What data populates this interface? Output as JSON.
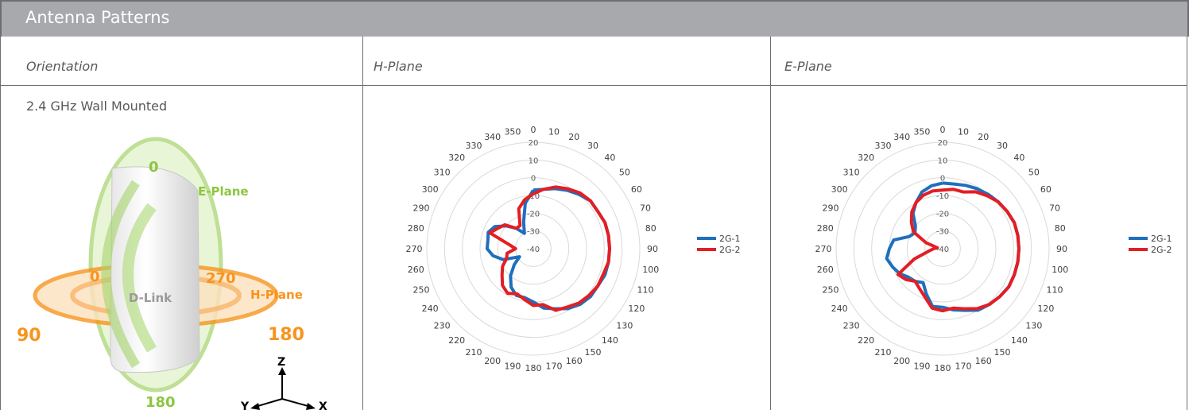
{
  "title": "Antenna Patterns",
  "headers": {
    "orientation": "Orientation",
    "h_plane": "H-Plane",
    "e_plane": "E-Plane"
  },
  "orientation": {
    "label": "2.4 GHz Wall Mounted",
    "illustration": {
      "e_plane_label": "E-Plane",
      "h_plane_label": "H-Plane",
      "logo_text": "D-Link",
      "e_angles": {
        "top": "0",
        "bottom": "180"
      },
      "h_angles": {
        "left_0": "0",
        "left_90": "90",
        "right_270": "270",
        "right_180": "180"
      },
      "axes": {
        "z": "Z",
        "y": "Y",
        "x": "X"
      }
    }
  },
  "colors": {
    "series_1": "#1f6fbd",
    "series_2": "#e31e24",
    "e_plane": "#8cc63f",
    "h_plane": "#f7941d",
    "title_bar": "#a7a9ac"
  },
  "chart_data": [
    {
      "type": "radar",
      "name": "H-Plane",
      "r_ticks": [
        "20",
        "10",
        "0",
        "-10",
        "-20",
        "-30",
        "-40"
      ],
      "rlim": [
        -40,
        20
      ],
      "angle_labels": [
        "0",
        "10",
        "20",
        "30",
        "40",
        "50",
        "60",
        "70",
        "80",
        "90",
        "100",
        "110",
        "120",
        "130",
        "140",
        "150",
        "160",
        "170",
        "180",
        "190",
        "200",
        "210",
        "220",
        "230",
        "240",
        "250",
        "260",
        "270",
        "280",
        "290",
        "300",
        "310",
        "320",
        "330",
        "340",
        "350"
      ],
      "legend": [
        "2G-1",
        "2G-2"
      ],
      "series": [
        {
          "name": "2G-1",
          "values": [
            -7,
            -6,
            -4,
            -2,
            0,
            2,
            2,
            3,
            3,
            3,
            3,
            3,
            2,
            2,
            1,
            -1,
            -4,
            -6,
            -10,
            -12,
            -12,
            -15,
            -20,
            -26,
            -31,
            -22,
            -17,
            -14,
            -14,
            -13,
            -15,
            -20,
            -25,
            -30,
            -24,
            -14
          ]
        },
        {
          "name": "2G-2",
          "values": [
            -9,
            -6,
            -3,
            -1,
            1,
            2,
            2,
            3,
            3,
            3,
            3,
            2,
            2,
            1,
            0,
            -2,
            -3,
            -8,
            -8,
            -11,
            -13,
            -11,
            -13,
            -17,
            -20,
            -24,
            -25,
            -30,
            -26,
            -14,
            -17,
            -19,
            -25,
            -25,
            -16,
            -12
          ]
        }
      ]
    },
    {
      "type": "radar",
      "name": "E-Plane",
      "r_ticks": [
        "20",
        "10",
        "0",
        "-10",
        "-20",
        "-30",
        "-40"
      ],
      "rlim": [
        -40,
        20
      ],
      "angle_labels": [
        "0",
        "10",
        "20",
        "30",
        "40",
        "50",
        "60",
        "70",
        "80",
        "90",
        "100",
        "110",
        "120",
        "130",
        "140",
        "150",
        "160",
        "170",
        "180",
        "190",
        "200",
        "210",
        "220",
        "230",
        "240",
        "250",
        "260",
        "270",
        "280",
        "290",
        "300",
        "310",
        "320",
        "330",
        "340",
        "350"
      ],
      "legend": [
        "2G-1",
        "2G-2"
      ],
      "series": [
        {
          "name": "2G-1",
          "values": [
            -3,
            -3,
            -2,
            -1,
            0,
            1,
            2,
            3,
            3,
            3,
            3,
            3,
            3,
            2,
            1,
            0,
            -3,
            -5,
            -7,
            -7,
            -13,
            -18,
            -16,
            -15,
            -12,
            -10,
            -8,
            -10,
            -12,
            -20,
            -22,
            -20,
            -14,
            -10,
            -6,
            -4
          ]
        },
        {
          "name": "2G-2",
          "values": [
            -7,
            -6,
            -6,
            -3,
            -1,
            1,
            2,
            3,
            3,
            3,
            3,
            3,
            3,
            2,
            1,
            -1,
            -4,
            -6,
            -5,
            -6,
            -11,
            -14,
            -16,
            -13,
            -11,
            -23,
            -32,
            -35,
            -37,
            -30,
            -21,
            -17,
            -13,
            -10,
            -8,
            -7
          ]
        }
      ]
    }
  ]
}
